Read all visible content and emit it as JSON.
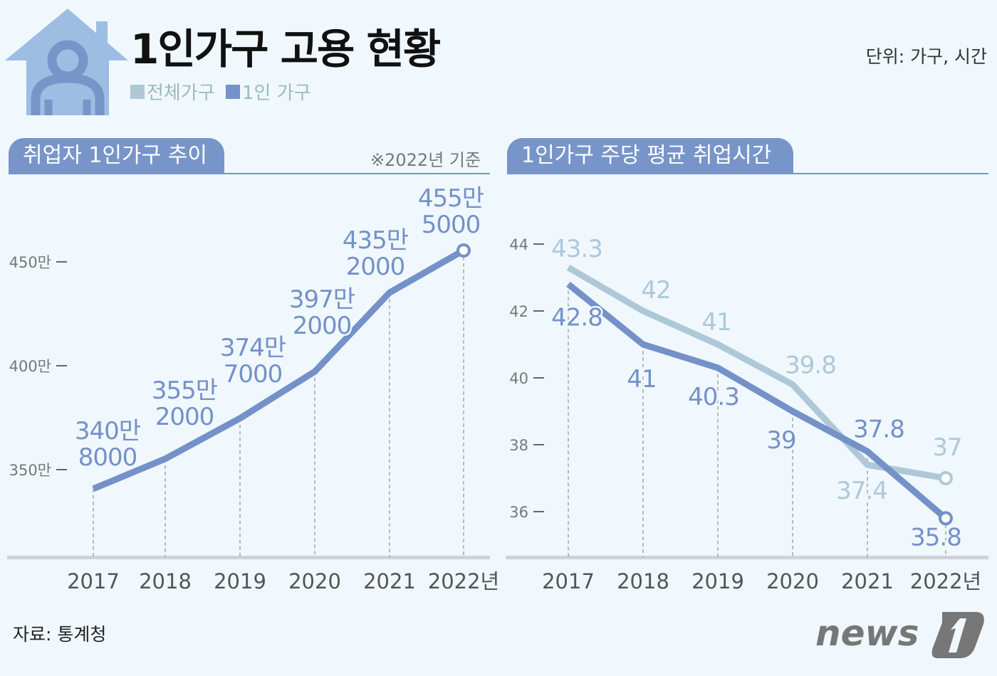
{
  "title": "1인가구 고용 현황",
  "unit": "단위: 가구, 시간",
  "legend": [
    {
      "name": "전체가구",
      "color": "#aec8d8"
    },
    {
      "name": "1인 가구",
      "color": "#7491c8"
    }
  ],
  "source": "자료: 통계청",
  "logo": "news1",
  "chart_data": [
    {
      "type": "line",
      "title": "취업자 1인가구 추이",
      "note": "※2022년 기준",
      "categories": [
        "2017",
        "2018",
        "2019",
        "2020",
        "2021",
        "2022년"
      ],
      "yticks": [
        "350만",
        "400만",
        "450만"
      ],
      "ytick_values": [
        350,
        400,
        450
      ],
      "series": [
        {
          "name": "1인 가구",
          "color": "#7491c8",
          "values": [
            340.8,
            355.2,
            374.7,
            397.2,
            435.2,
            455.5
          ],
          "labels": [
            [
              "340만",
              "8000"
            ],
            [
              "355만",
              "2000"
            ],
            [
              "374만",
              "7000"
            ],
            [
              "397만",
              "2000"
            ],
            [
              "435만",
              "2000"
            ],
            [
              "455만",
              "5000"
            ]
          ]
        }
      ]
    },
    {
      "type": "line",
      "title": "1인가구 주당 평균 취업시간",
      "categories": [
        "2017",
        "2018",
        "2019",
        "2020",
        "2021",
        "2022년"
      ],
      "yticks": [
        "36",
        "38",
        "40",
        "42",
        "44"
      ],
      "ytick_values": [
        36,
        38,
        40,
        42,
        44
      ],
      "series": [
        {
          "name": "전체가구",
          "color": "#aec8d8",
          "values": [
            43.3,
            42,
            41,
            39.8,
            37.4,
            37
          ],
          "labels": [
            "43.3",
            "42",
            "41",
            "39.8",
            "37.4",
            "37"
          ]
        },
        {
          "name": "1인 가구",
          "color": "#7491c8",
          "values": [
            42.8,
            41,
            40.3,
            39,
            37.8,
            35.8
          ],
          "labels": [
            "42.8",
            "41",
            "40.3",
            "39",
            "37.8",
            "35.8"
          ]
        }
      ]
    }
  ]
}
